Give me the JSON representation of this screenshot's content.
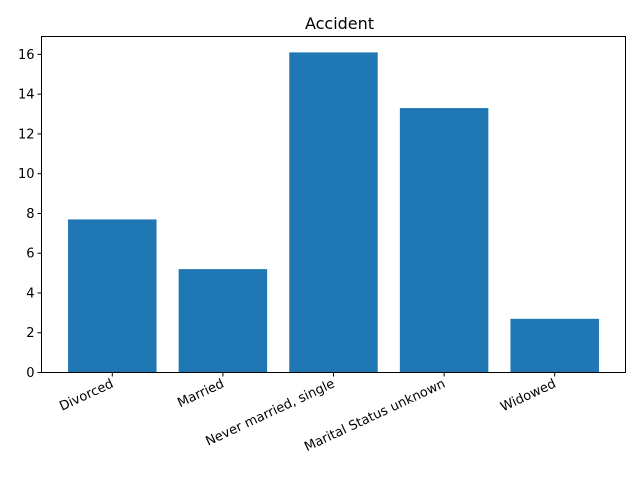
{
  "chart_data": {
    "type": "bar",
    "title": "Accident",
    "xlabel": "",
    "ylabel": "",
    "categories": [
      "Divorced",
      "Married",
      "Never married, single",
      "Marital Status unknown",
      "Widowed"
    ],
    "values": [
      7.7,
      5.2,
      16.1,
      13.3,
      2.7
    ],
    "ylim": [
      0,
      16.9
    ],
    "yticks": [
      0,
      2,
      4,
      6,
      8,
      10,
      12,
      14,
      16
    ],
    "bar_color": "#1f77b4",
    "grid": false,
    "legend": "none"
  }
}
